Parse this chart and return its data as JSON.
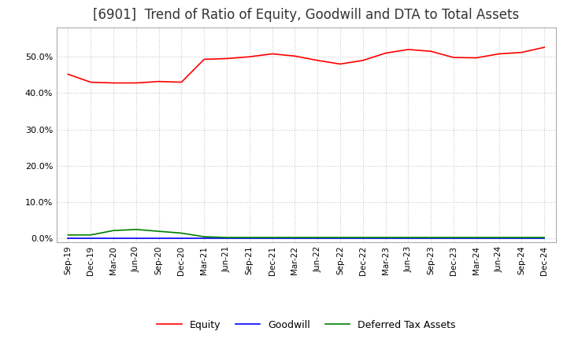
{
  "title": "[6901]  Trend of Ratio of Equity, Goodwill and DTA to Total Assets",
  "x_labels": [
    "Sep-19",
    "Dec-19",
    "Mar-20",
    "Jun-20",
    "Sep-20",
    "Dec-20",
    "Mar-21",
    "Jun-21",
    "Sep-21",
    "Dec-21",
    "Mar-22",
    "Jun-22",
    "Sep-22",
    "Dec-22",
    "Mar-23",
    "Jun-23",
    "Sep-23",
    "Dec-23",
    "Mar-24",
    "Jun-24",
    "Sep-24",
    "Dec-24"
  ],
  "equity": [
    0.452,
    0.43,
    0.428,
    0.428,
    0.432,
    0.43,
    0.493,
    0.495,
    0.5,
    0.508,
    0.502,
    0.49,
    0.48,
    0.49,
    0.51,
    0.52,
    0.515,
    0.498,
    0.497,
    0.508,
    0.512,
    0.526
  ],
  "goodwill": [
    0.0,
    0.0,
    0.0,
    0.0,
    0.0,
    0.0,
    0.0,
    0.0,
    0.0,
    0.0,
    0.0,
    0.0,
    0.0,
    0.0,
    0.0,
    0.0,
    0.0,
    0.0,
    0.0,
    0.0,
    0.0,
    0.0
  ],
  "dta": [
    0.01,
    0.01,
    0.022,
    0.025,
    0.02,
    0.015,
    0.005,
    0.003,
    0.003,
    0.003,
    0.003,
    0.003,
    0.003,
    0.003,
    0.003,
    0.003,
    0.003,
    0.003,
    0.003,
    0.003,
    0.003,
    0.003
  ],
  "equity_color": "#ff0000",
  "goodwill_color": "#0000ff",
  "dta_color": "#008000",
  "ylim": [
    -0.01,
    0.58
  ],
  "yticks": [
    0.0,
    0.1,
    0.2,
    0.3,
    0.4,
    0.5
  ],
  "background_color": "#ffffff",
  "grid_color": "#c8c8c8",
  "title_fontsize": 12
}
